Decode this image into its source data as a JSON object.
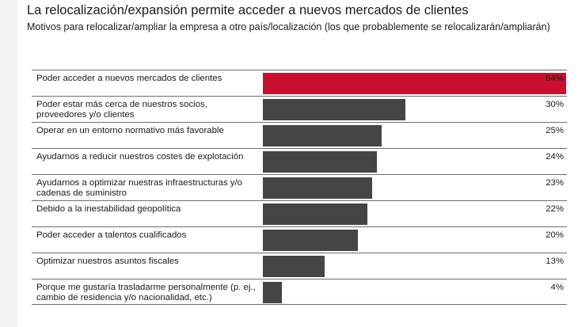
{
  "title": "La relocalización/expansión permite acceder a nuevos mercados de clientes",
  "subtitle": "Motivos para relocalizar/ampliar la empresa a otro país/localización (los que probablemente se relocalizarán/ampliarán)",
  "colors": {
    "accent": "#c8102e",
    "bar": "#454545"
  },
  "chart_data": {
    "type": "bar",
    "orientation": "horizontal",
    "unit": "%",
    "xlim": [
      0,
      100
    ],
    "grid": false,
    "categories": [
      "Poder acceder a nuevos mercados de clientes",
      "Poder estar más cerca de nuestros socios, proveedores y/o clientes",
      "Operar en un entorno normativo más favorable",
      "Ayudarnos a reducir nuestros costes de explotación",
      "Ayudarnos a optimizar nuestras infraestructuras y/o cadenas de suministro",
      "Debido a la inestabilidad geopolítica",
      "Poder acceder a talentos cualificados",
      "Optimizar nuestros asuntos fiscales",
      "Porque me gustaría trasladarme personalmente (p. ej., cambio de residencia y/o nacionalidad, etc.)"
    ],
    "values": [
      64,
      30,
      25,
      24,
      23,
      22,
      20,
      13,
      4
    ],
    "value_labels": [
      "64%",
      "30%",
      "25%",
      "24%",
      "23%",
      "22%",
      "20%",
      "13%",
      "4%"
    ],
    "highlight_index": 0
  }
}
